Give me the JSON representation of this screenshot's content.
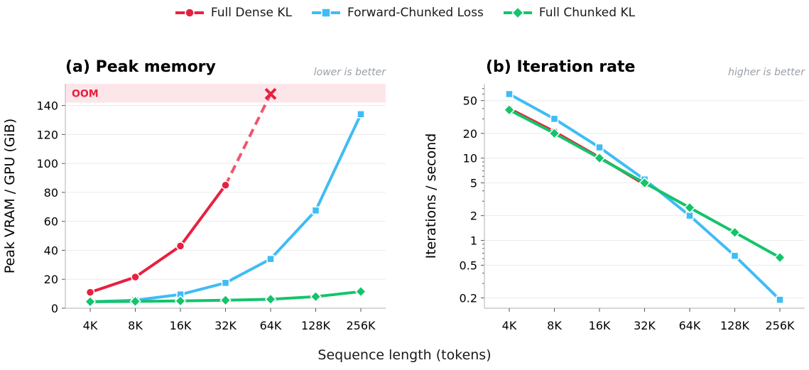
{
  "colors": {
    "dense": "#e8203f",
    "forward": "#3fbcf5",
    "chunked": "#13c46a",
    "axis": "#bfbfbf",
    "grid": "#ececec",
    "note": "#9aa0a6",
    "oom_band": "#fde6ea"
  },
  "xlabel": "Sequence length (tokens)",
  "legend": [
    {
      "name": "Full Dense KL",
      "color": "#e8203f",
      "marker": "circle"
    },
    {
      "name": "Forward-Chunked Loss",
      "color": "#3fbcf5",
      "marker": "square"
    },
    {
      "name": "Full Chunked KL",
      "color": "#13c46a",
      "marker": "diamond"
    }
  ],
  "chart_data": [
    {
      "type": "line",
      "title": "(a) Peak memory",
      "note": "lower is better",
      "ylabel": "Peak VRAM / GPU (GiB)",
      "categories": [
        "4K",
        "8K",
        "16K",
        "32K",
        "64K",
        "128K",
        "256K"
      ],
      "ylim": [
        0,
        155
      ],
      "yticks": [
        0,
        20,
        40,
        60,
        80,
        100,
        120,
        140
      ],
      "yscale": "linear",
      "grid": true,
      "oom_label": "OOM",
      "oom_band": [
        142,
        155
      ],
      "oom_marker": {
        "x": "64K",
        "y": 148
      },
      "series": [
        {
          "name": "Full Dense KL",
          "values": [
            11,
            21.5,
            43,
            85,
            null,
            null,
            null
          ],
          "extrapolated_to_oom": true
        },
        {
          "name": "Forward-Chunked Loss",
          "values": [
            4.5,
            5.5,
            9.5,
            17.5,
            34,
            67.5,
            134
          ]
        },
        {
          "name": "Full Chunked KL",
          "values": [
            4.5,
            4.7,
            5,
            5.5,
            6.2,
            8,
            11.5
          ]
        }
      ]
    },
    {
      "type": "line",
      "title": "(b) Iteration rate",
      "note": "higher is better",
      "ylabel": "Iterations / second",
      "categories": [
        "4K",
        "8K",
        "16K",
        "32K",
        "64K",
        "128K",
        "256K"
      ],
      "yscale": "log",
      "ylim": [
        0.15,
        80
      ],
      "yticks": [
        0.2,
        0.5,
        1,
        2,
        5,
        10,
        20,
        50
      ],
      "yticklabels": [
        "0.2",
        "0.5",
        "1",
        "2",
        "5",
        "10",
        "20",
        "50"
      ],
      "grid": true,
      "series": [
        {
          "name": "Full Dense KL",
          "values": [
            40,
            21,
            10.2,
            4.8,
            null,
            null,
            null
          ]
        },
        {
          "name": "Forward-Chunked Loss",
          "values": [
            60,
            30,
            13.5,
            5.5,
            2,
            0.65,
            0.19
          ]
        },
        {
          "name": "Full Chunked KL",
          "values": [
            38.5,
            20,
            10,
            5,
            2.5,
            1.25,
            0.62
          ]
        }
      ]
    }
  ]
}
